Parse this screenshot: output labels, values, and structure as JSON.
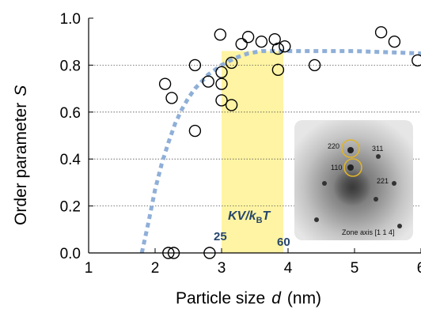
{
  "chart_data": {
    "type": "scatter",
    "xlabel": "Particle size",
    "xlabel_var": "d",
    "xlabel_unit": "(nm)",
    "ylabel": "Order parameter",
    "ylabel_var": "S",
    "xlim": [
      1,
      6
    ],
    "ylim": [
      0,
      1.0
    ],
    "xticks": [
      "1",
      "2",
      "3",
      "4",
      "5",
      "6"
    ],
    "yticks": [
      "0.0",
      "0.2",
      "0.4",
      "0.6",
      "0.8",
      "1.0"
    ],
    "grid": "horizontal-dotted",
    "points": [
      [
        2.15,
        0.72
      ],
      [
        2.25,
        0.66
      ],
      [
        2.2,
        0.0
      ],
      [
        2.28,
        0.0
      ],
      [
        2.6,
        0.8
      ],
      [
        2.6,
        0.52
      ],
      [
        2.8,
        0.73
      ],
      [
        2.82,
        0.0
      ],
      [
        2.98,
        0.93
      ],
      [
        3.0,
        0.65
      ],
      [
        3.0,
        0.72
      ],
      [
        3.0,
        0.77
      ],
      [
        3.15,
        0.81
      ],
      [
        3.15,
        0.63
      ],
      [
        3.3,
        0.89
      ],
      [
        3.4,
        0.92
      ],
      [
        3.6,
        0.9
      ],
      [
        3.8,
        0.91
      ],
      [
        3.85,
        0.87
      ],
      [
        3.85,
        0.78
      ],
      [
        3.95,
        0.88
      ],
      [
        4.4,
        0.8
      ],
      [
        5.4,
        0.94
      ],
      [
        5.6,
        0.9
      ],
      [
        5.95,
        0.82
      ]
    ],
    "fit_curve": {
      "style": "dashed",
      "color": "#8fafd8",
      "x": [
        1.8,
        1.9,
        2.0,
        2.1,
        2.2,
        2.3,
        2.4,
        2.5,
        2.6,
        2.8,
        3.0,
        3.2,
        3.4,
        3.6,
        3.8,
        4.0,
        4.5,
        5.0,
        5.5,
        6.0
      ],
      "y": [
        0.0,
        0.13,
        0.27,
        0.38,
        0.47,
        0.55,
        0.61,
        0.66,
        0.7,
        0.76,
        0.8,
        0.83,
        0.85,
        0.86,
        0.86,
        0.86,
        0.86,
        0.86,
        0.855,
        0.85
      ]
    },
    "highlight_region": {
      "x_range": [
        3.0,
        3.93
      ],
      "y_range": [
        0,
        0.86
      ],
      "color": "#fff4a3",
      "label": "KV/k",
      "label_sub": "B",
      "label_tail": "T",
      "left_value": "25",
      "right_value": "60"
    },
    "inset": {
      "labels": [
        "220",
        "311",
        "110",
        "221"
      ],
      "caption": "Zone axis [1 1 4]",
      "circle_color": "#e0b42a"
    }
  }
}
